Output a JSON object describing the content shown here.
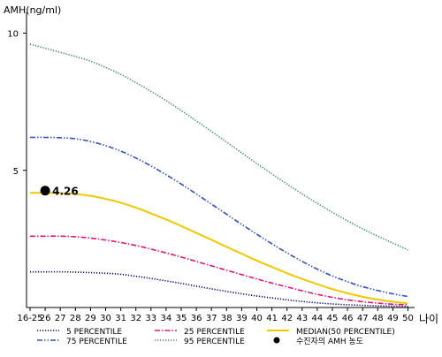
{
  "chart_data": {
    "type": "line",
    "ylabel": "AMH(ng/ml)",
    "xlabel": "나이",
    "ylim": [
      0,
      11
    ],
    "yticks": [
      5,
      10
    ],
    "categories": [
      "16-25",
      "26",
      "27",
      "28",
      "29",
      "30",
      "31",
      "32",
      "33",
      "34",
      "35",
      "36",
      "37",
      "38",
      "39",
      "40",
      "41",
      "42",
      "43",
      "44",
      "45",
      "46",
      "47",
      "48",
      "49",
      "50"
    ],
    "series": [
      {
        "name": "5 PERCENTILE",
        "color": "#000080",
        "dash": "dotted",
        "values": [
          1.3,
          1.3,
          1.3,
          1.29,
          1.27,
          1.25,
          1.21,
          1.14,
          1.06,
          0.97,
          0.88,
          0.78,
          0.68,
          0.59,
          0.5,
          0.42,
          0.35,
          0.28,
          0.22,
          0.17,
          0.13,
          0.1,
          0.08,
          0.06,
          0.05,
          0.04
        ]
      },
      {
        "name": "25 PERCENTILE",
        "color": "#e0147a",
        "dash": "dash-dot",
        "values": [
          2.6,
          2.6,
          2.6,
          2.58,
          2.53,
          2.46,
          2.37,
          2.26,
          2.13,
          1.99,
          1.84,
          1.68,
          1.52,
          1.36,
          1.2,
          1.04,
          0.89,
          0.75,
          0.61,
          0.48,
          0.37,
          0.28,
          0.21,
          0.16,
          0.12,
          0.1
        ]
      },
      {
        "name": "MEDIAN(50 PERCENTILE)",
        "color": "#f0c800",
        "dash": "solid",
        "values": [
          4.18,
          4.18,
          4.17,
          4.14,
          4.07,
          3.96,
          3.82,
          3.64,
          3.43,
          3.21,
          2.97,
          2.72,
          2.47,
          2.21,
          1.96,
          1.71,
          1.48,
          1.25,
          1.04,
          0.85,
          0.67,
          0.52,
          0.39,
          0.29,
          0.21,
          0.15
        ]
      },
      {
        "name": "75 PERCENTILE",
        "color": "#3050c0",
        "dash": "dash-dot-dot",
        "values": [
          6.2,
          6.2,
          6.19,
          6.15,
          6.05,
          5.9,
          5.7,
          5.45,
          5.16,
          4.84,
          4.5,
          4.14,
          3.77,
          3.4,
          3.03,
          2.67,
          2.32,
          1.99,
          1.68,
          1.4,
          1.15,
          0.94,
          0.76,
          0.62,
          0.5,
          0.4
        ]
      },
      {
        "name": "95 PERCENTILE",
        "color": "#2e8b57",
        "dash": "dotted",
        "values": [
          9.6,
          9.45,
          9.3,
          9.15,
          8.98,
          8.75,
          8.5,
          8.2,
          7.88,
          7.54,
          7.18,
          6.8,
          6.42,
          6.03,
          5.64,
          5.25,
          4.87,
          4.5,
          4.14,
          3.8,
          3.47,
          3.16,
          2.87,
          2.6,
          2.35,
          2.1
        ]
      }
    ],
    "marker": {
      "name": "수진자의 AMH 농도",
      "x": "26",
      "value": 4.26,
      "label": "4.26",
      "color": "#000000"
    }
  }
}
